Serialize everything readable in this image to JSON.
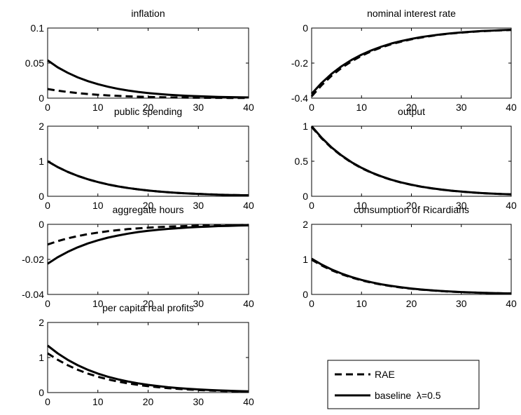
{
  "chart_data": [
    {
      "type": "line",
      "title": "inflation",
      "xlim": [
        0,
        40
      ],
      "ylim": [
        0,
        0.1
      ],
      "xticks": [
        "0",
        "10",
        "20",
        "30",
        "40"
      ],
      "yticks": [
        "0",
        "0.05",
        "0.1"
      ],
      "x": [
        0,
        2,
        4,
        6,
        8,
        10,
        12,
        14,
        16,
        18,
        20,
        22,
        24,
        26,
        28,
        30,
        32,
        34,
        36,
        38,
        40
      ],
      "series": [
        {
          "name": "RAE",
          "style": "dashed",
          "values": [
            0.013,
            0.0107,
            0.0088,
            0.0072,
            0.0059,
            0.0048,
            0.0039,
            0.0032,
            0.0026,
            0.0021,
            0.0017,
            0.0014,
            0.0011,
            0.0009,
            0.0007,
            0.0006,
            0.0005,
            0.0004,
            0.0003,
            0.0002,
            0.0002
          ]
        },
        {
          "name": "baseline λ=0.5",
          "style": "solid",
          "values": [
            0.054,
            0.044,
            0.0362,
            0.0296,
            0.0243,
            0.0199,
            0.0163,
            0.0133,
            0.0109,
            0.0089,
            0.0073,
            0.006,
            0.0049,
            0.004,
            0.0033,
            0.0027,
            0.0022,
            0.0018,
            0.0015,
            0.0012,
            0.001
          ]
        }
      ]
    },
    {
      "type": "line",
      "title": "nominal interest rate",
      "xlim": [
        0,
        40
      ],
      "ylim": [
        -0.4,
        0
      ],
      "xticks": [
        "0",
        "10",
        "20",
        "30",
        "40"
      ],
      "yticks": [
        "-0.4",
        "-0.2",
        "0"
      ],
      "x": [
        0,
        2,
        4,
        6,
        8,
        10,
        12,
        14,
        16,
        18,
        20,
        22,
        24,
        26,
        28,
        30,
        32,
        34,
        36,
        38,
        40
      ],
      "series": [
        {
          "name": "RAE",
          "style": "dashed",
          "values": [
            -0.39,
            -0.326,
            -0.272,
            -0.227,
            -0.19,
            -0.158,
            -0.132,
            -0.11,
            -0.092,
            -0.077,
            -0.064,
            -0.054,
            -0.045,
            -0.037,
            -0.031,
            -0.026,
            -0.022,
            -0.018,
            -0.015,
            -0.013,
            -0.011
          ]
        },
        {
          "name": "baseline λ=0.5",
          "style": "solid",
          "values": [
            -0.375,
            -0.313,
            -0.261,
            -0.218,
            -0.182,
            -0.152,
            -0.127,
            -0.106,
            -0.088,
            -0.074,
            -0.062,
            -0.051,
            -0.043,
            -0.036,
            -0.03,
            -0.025,
            -0.021,
            -0.017,
            -0.015,
            -0.012,
            -0.01
          ]
        }
      ]
    },
    {
      "type": "line",
      "title": "public spending",
      "xlim": [
        0,
        40
      ],
      "ylim": [
        0,
        2
      ],
      "xticks": [
        "0",
        "10",
        "20",
        "30",
        "40"
      ],
      "yticks": [
        "0",
        "1",
        "2"
      ],
      "x": [
        0,
        2,
        4,
        6,
        8,
        10,
        12,
        14,
        16,
        18,
        20,
        22,
        24,
        26,
        28,
        30,
        32,
        34,
        36,
        38,
        40
      ],
      "series": [
        {
          "name": "RAE",
          "style": "dashed",
          "values": [
            1.0,
            0.835,
            0.697,
            0.582,
            0.486,
            0.406,
            0.339,
            0.283,
            0.236,
            0.197,
            0.165,
            0.137,
            0.115,
            0.096,
            0.08,
            0.067,
            0.056,
            0.046,
            0.039,
            0.032,
            0.027
          ]
        },
        {
          "name": "baseline λ=0.5",
          "style": "solid",
          "values": [
            1.0,
            0.835,
            0.697,
            0.582,
            0.486,
            0.406,
            0.339,
            0.283,
            0.236,
            0.197,
            0.165,
            0.137,
            0.115,
            0.096,
            0.08,
            0.067,
            0.056,
            0.046,
            0.039,
            0.032,
            0.027
          ]
        }
      ]
    },
    {
      "type": "line",
      "title": "output",
      "xlim": [
        0,
        40
      ],
      "ylim": [
        0,
        1
      ],
      "xticks": [
        "0",
        "10",
        "20",
        "30",
        "40"
      ],
      "yticks": [
        "0",
        "0.5",
        "1"
      ],
      "x": [
        0,
        2,
        4,
        6,
        8,
        10,
        12,
        14,
        16,
        18,
        20,
        22,
        24,
        26,
        28,
        30,
        32,
        34,
        36,
        38,
        40
      ],
      "series": [
        {
          "name": "RAE",
          "style": "dashed",
          "values": [
            0.99,
            0.826,
            0.69,
            0.576,
            0.481,
            0.401,
            0.335,
            0.28,
            0.234,
            0.195,
            0.163,
            0.136,
            0.114,
            0.095,
            0.079,
            0.066,
            0.055,
            0.046,
            0.038,
            0.032,
            0.027
          ]
        },
        {
          "name": "baseline λ=0.5",
          "style": "solid",
          "values": [
            1.0,
            0.835,
            0.697,
            0.582,
            0.486,
            0.406,
            0.339,
            0.283,
            0.236,
            0.197,
            0.165,
            0.137,
            0.115,
            0.096,
            0.08,
            0.067,
            0.056,
            0.046,
            0.039,
            0.032,
            0.027
          ]
        }
      ]
    },
    {
      "type": "line",
      "title": "aggregate hours",
      "xlim": [
        0,
        40
      ],
      "ylim": [
        -0.04,
        0
      ],
      "xticks": [
        "0",
        "10",
        "20",
        "30",
        "40"
      ],
      "yticks": [
        "-0.04",
        "-0.02",
        "0"
      ],
      "x": [
        0,
        2,
        4,
        6,
        8,
        10,
        12,
        14,
        16,
        18,
        20,
        22,
        24,
        26,
        28,
        30,
        32,
        34,
        36,
        38,
        40
      ],
      "series": [
        {
          "name": "RAE",
          "style": "dashed",
          "values": [
            -0.0115,
            -0.0096,
            -0.008,
            -0.0067,
            -0.0056,
            -0.0047,
            -0.0039,
            -0.0033,
            -0.0027,
            -0.0023,
            -0.0019,
            -0.0016,
            -0.0013,
            -0.0011,
            -0.0009,
            -0.0008,
            -0.0006,
            -0.0005,
            -0.0004,
            -0.0004,
            -0.0003
          ]
        },
        {
          "name": "baseline λ=0.5",
          "style": "solid",
          "values": [
            -0.0225,
            -0.0188,
            -0.0157,
            -0.0131,
            -0.0109,
            -0.0091,
            -0.0076,
            -0.0064,
            -0.0053,
            -0.0044,
            -0.0037,
            -0.0031,
            -0.0026,
            -0.0022,
            -0.0018,
            -0.0015,
            -0.0013,
            -0.001,
            -0.0009,
            -0.0007,
            -0.0006
          ]
        }
      ]
    },
    {
      "type": "line",
      "title": "consumption of Ricardians",
      "xlim": [
        0,
        40
      ],
      "ylim": [
        0,
        2
      ],
      "xticks": [
        "0",
        "10",
        "20",
        "30",
        "40"
      ],
      "yticks": [
        "0",
        "1",
        "2"
      ],
      "x": [
        0,
        2,
        4,
        6,
        8,
        10,
        12,
        14,
        16,
        18,
        20,
        22,
        24,
        26,
        28,
        30,
        32,
        34,
        36,
        38,
        40
      ],
      "series": [
        {
          "name": "RAE",
          "style": "dashed",
          "values": [
            0.99,
            0.826,
            0.69,
            0.576,
            0.481,
            0.401,
            0.335,
            0.28,
            0.234,
            0.195,
            0.163,
            0.136,
            0.114,
            0.095,
            0.079,
            0.066,
            0.055,
            0.046,
            0.038,
            0.032,
            0.027
          ]
        },
        {
          "name": "baseline λ=0.5",
          "style": "solid",
          "values": [
            1.02,
            0.852,
            0.711,
            0.594,
            0.496,
            0.414,
            0.346,
            0.289,
            0.241,
            0.201,
            0.168,
            0.14,
            0.117,
            0.098,
            0.082,
            0.068,
            0.057,
            0.047,
            0.04,
            0.033,
            0.028
          ]
        }
      ]
    },
    {
      "type": "line",
      "title": "per capita real profits",
      "xlim": [
        0,
        40
      ],
      "ylim": [
        0,
        2
      ],
      "xticks": [
        "0",
        "10",
        "20",
        "30",
        "40"
      ],
      "yticks": [
        "0",
        "1",
        "2"
      ],
      "x": [
        0,
        2,
        4,
        6,
        8,
        10,
        12,
        14,
        16,
        18,
        20,
        22,
        24,
        26,
        28,
        30,
        32,
        34,
        36,
        38,
        40
      ],
      "series": [
        {
          "name": "RAE",
          "style": "dashed",
          "values": [
            1.12,
            0.936,
            0.78,
            0.65,
            0.542,
            0.452,
            0.376,
            0.314,
            0.262,
            0.218,
            0.182,
            0.152,
            0.126,
            0.105,
            0.088,
            0.073,
            0.061,
            0.051,
            0.042,
            0.035,
            0.029
          ]
        },
        {
          "name": "baseline λ=0.5",
          "style": "solid",
          "values": [
            1.34,
            1.12,
            0.935,
            0.78,
            0.651,
            0.543,
            0.453,
            0.378,
            0.316,
            0.264,
            0.22,
            0.184,
            0.153,
            0.128,
            0.107,
            0.089,
            0.074,
            0.062,
            0.052,
            0.043,
            0.036
          ]
        }
      ]
    }
  ],
  "legend": {
    "placement": "bottom-right",
    "items": [
      {
        "label": "RAE",
        "style": "dashed"
      },
      {
        "label": "baseline  λ=0.5",
        "style": "solid"
      }
    ]
  }
}
